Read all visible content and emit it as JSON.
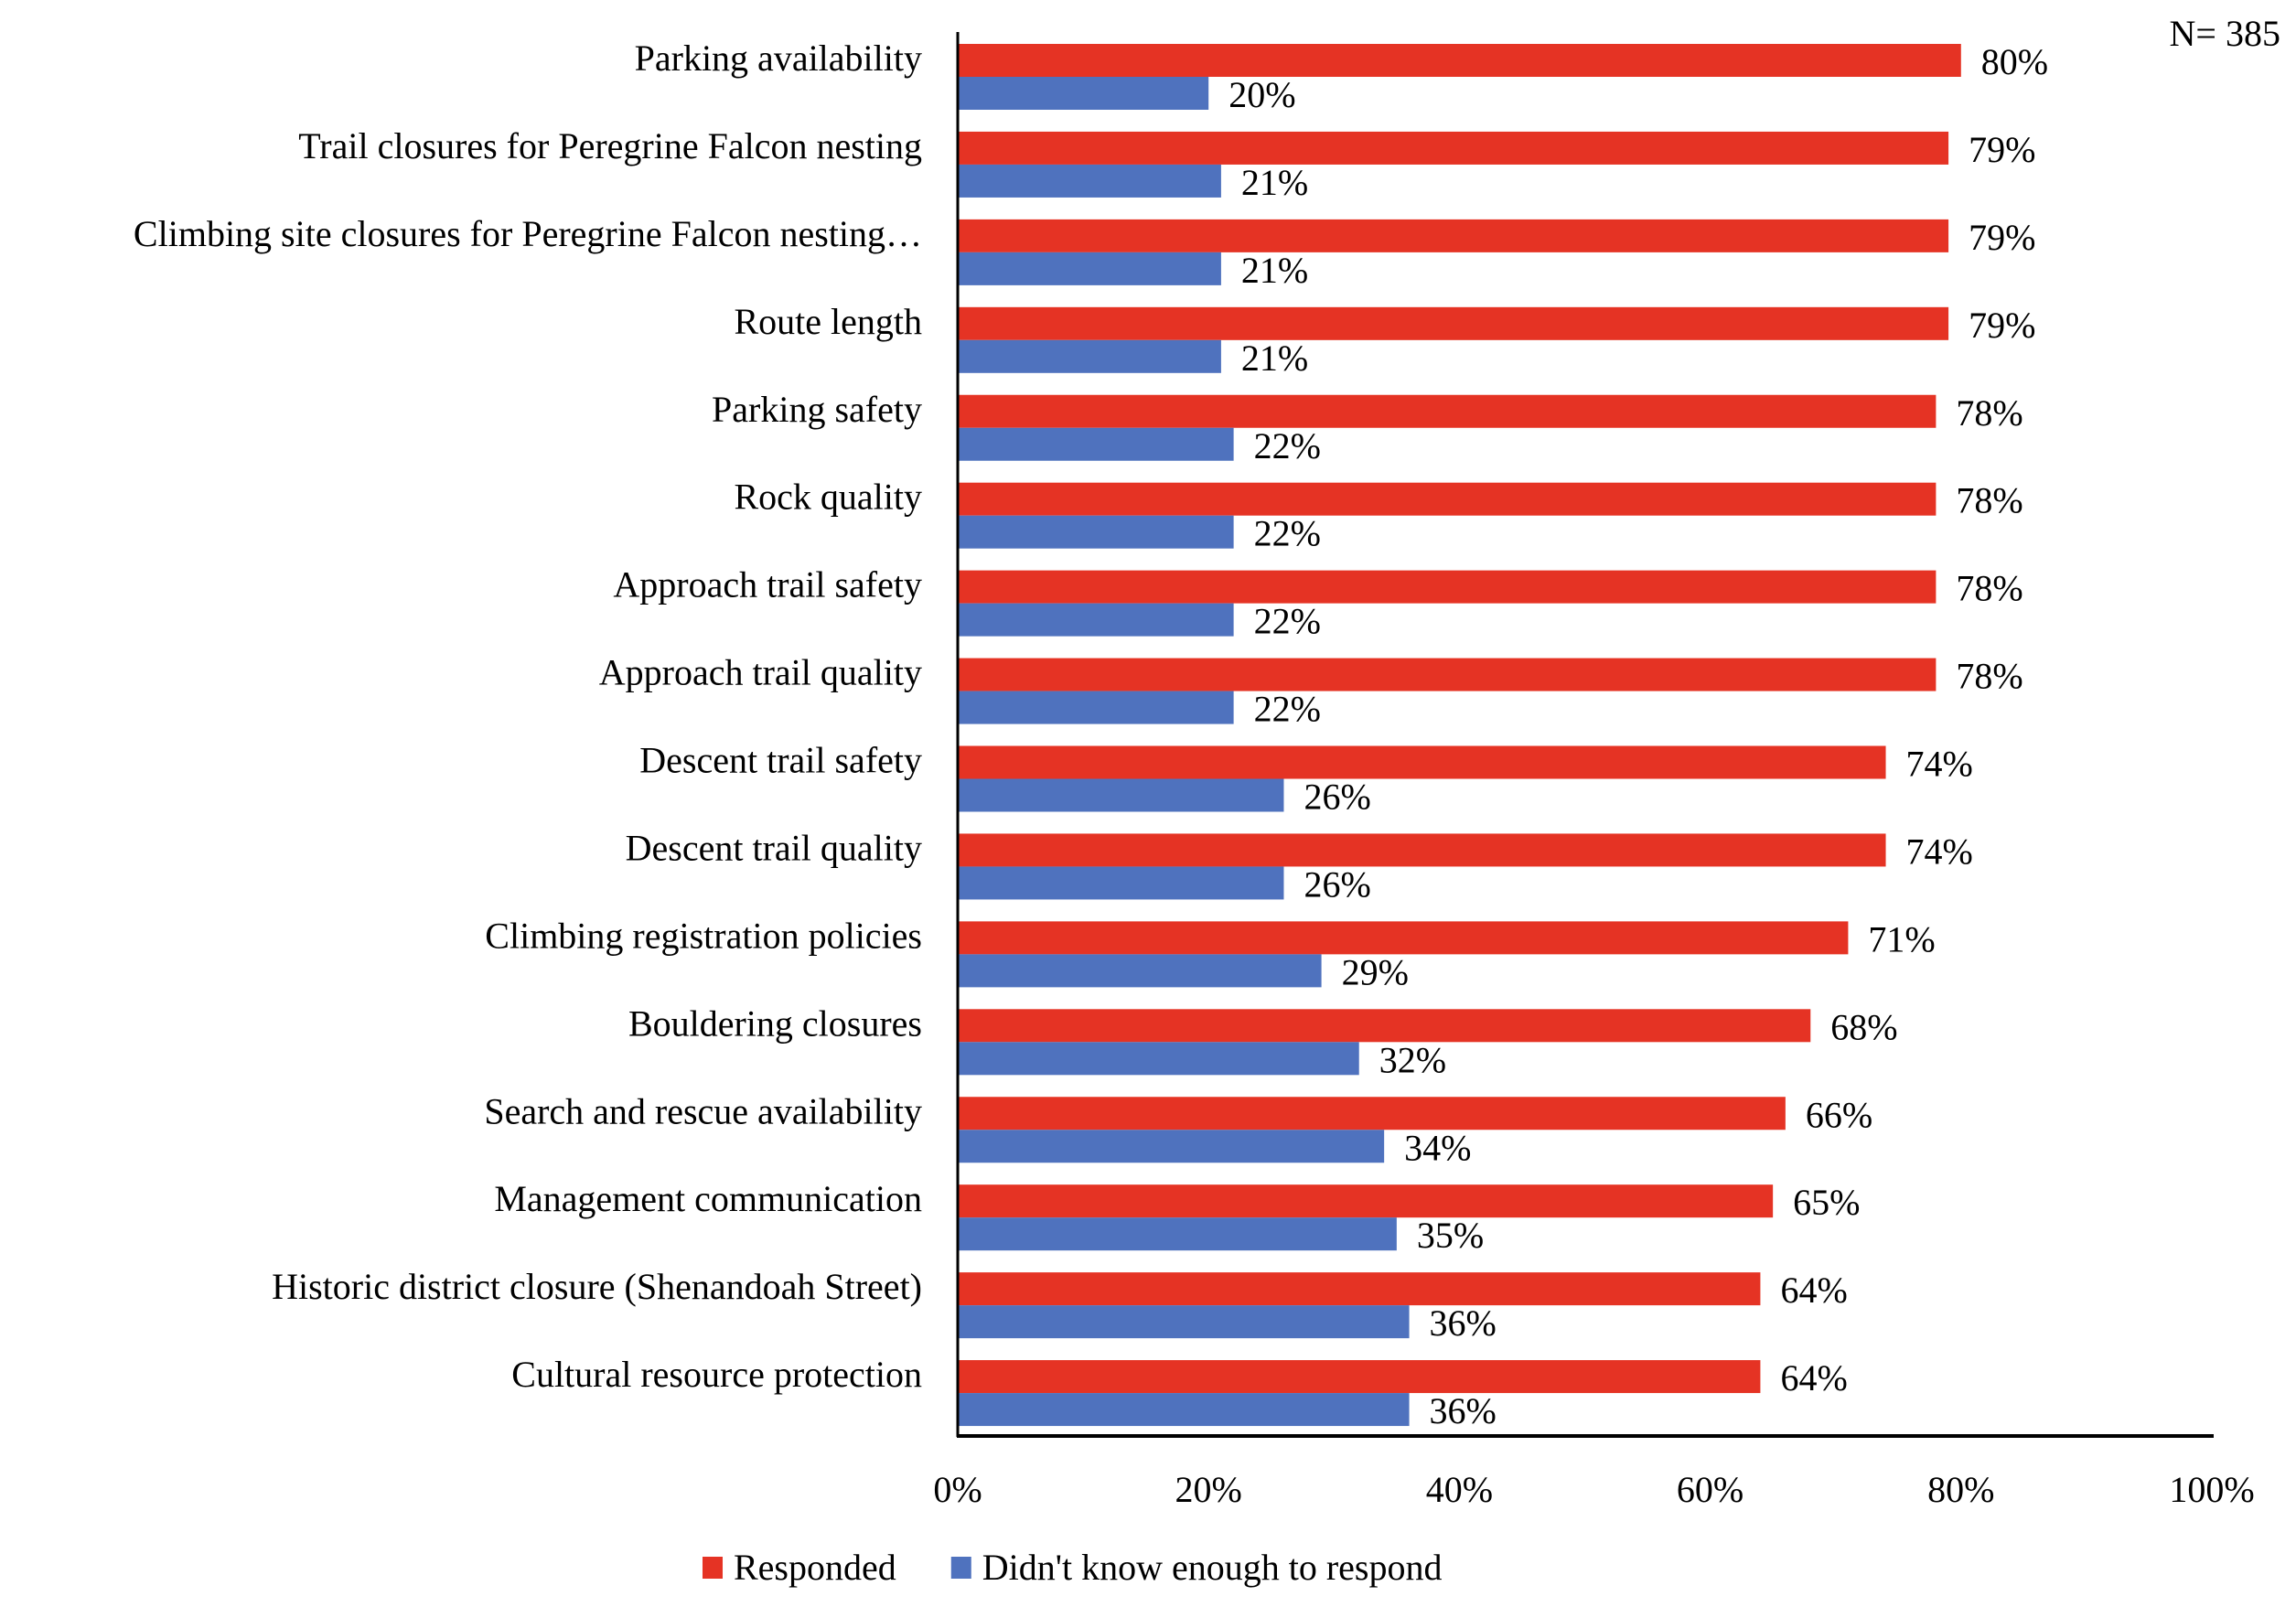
{
  "chart_data": {
    "type": "bar",
    "orientation": "horizontal",
    "annotation": "N= 385",
    "categories": [
      "Parking availability",
      "Trail closures for Peregrine Falcon nesting",
      "Climbing site closures for Peregrine Falcon nesting…",
      "Route length",
      "Parking safety",
      "Rock quality",
      "Approach trail safety",
      "Approach trail quality",
      "Descent trail safety",
      "Descent trail quality",
      "Climbing registration policies",
      "Bouldering closures",
      "Search and rescue availability",
      "Management communication",
      "Historic district closure (Shenandoah Street)",
      "Cultural resource protection"
    ],
    "series": [
      {
        "name": "Responded",
        "color": "#E53324",
        "values": [
          80,
          79,
          79,
          79,
          78,
          78,
          78,
          78,
          74,
          74,
          71,
          68,
          66,
          65,
          64,
          64
        ],
        "labels": [
          "80%",
          "79%",
          "79%",
          "79%",
          "78%",
          "78%",
          "78%",
          "78%",
          "74%",
          "74%",
          "71%",
          "68%",
          "66%",
          "65%",
          "64%",
          "64%"
        ]
      },
      {
        "name": "Didn't know enough to respond",
        "color": "#4F72BE",
        "values": [
          20,
          21,
          21,
          21,
          22,
          22,
          22,
          22,
          26,
          26,
          29,
          32,
          34,
          35,
          36,
          36
        ],
        "labels": [
          "20%",
          "21%",
          "21%",
          "21%",
          "22%",
          "22%",
          "22%",
          "22%",
          "26%",
          "26%",
          "29%",
          "32%",
          "34%",
          "35%",
          "36%",
          "36%"
        ]
      }
    ],
    "xlim": [
      0,
      100
    ],
    "xticks": [
      "0%",
      "20%",
      "40%",
      "60%",
      "80%",
      "100%"
    ],
    "xlabel": "",
    "ylabel": "",
    "grid": false,
    "legend": "bottom"
  }
}
